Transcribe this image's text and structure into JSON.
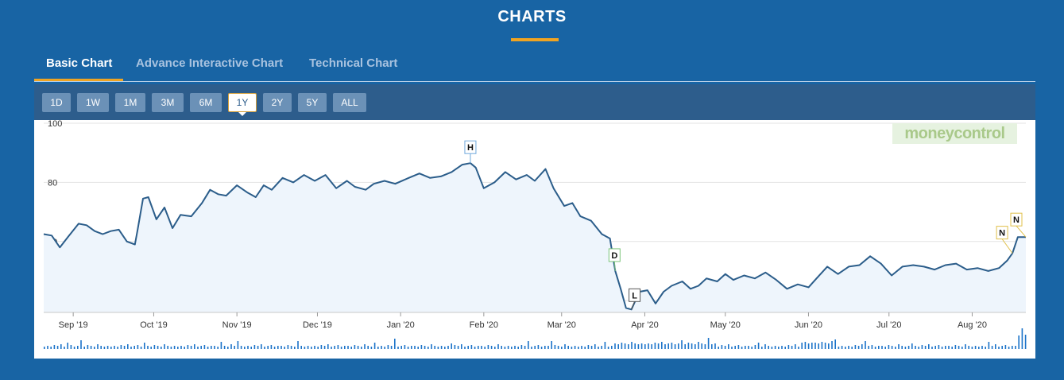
{
  "header": {
    "title": "CHARTS"
  },
  "tabs": [
    {
      "label": "Basic Chart",
      "active": true
    },
    {
      "label": "Advance Interactive Chart",
      "active": false
    },
    {
      "label": "Technical Chart",
      "active": false
    }
  ],
  "ranges": [
    {
      "label": "1D"
    },
    {
      "label": "1W"
    },
    {
      "label": "1M"
    },
    {
      "label": "3M"
    },
    {
      "label": "6M"
    },
    {
      "label": "1Y",
      "active": true
    },
    {
      "label": "2Y"
    },
    {
      "label": "5Y"
    },
    {
      "label": "ALL"
    }
  ],
  "logo": {
    "part1": "money",
    "part2": "control"
  },
  "colors": {
    "background": "#1864a4",
    "accent": "#f0a422",
    "line": "#2b5d8a",
    "fill": "#eef5fc",
    "volume": "#1b73c9"
  },
  "chart_data": {
    "type": "line",
    "ylim": [
      36,
      100
    ],
    "yticks": [
      40,
      60,
      80,
      100
    ],
    "x_start": "2019-08-21",
    "x_end": "2020-08-21",
    "xticks": [
      {
        "label": "Sep '19",
        "date": "2019-09-01"
      },
      {
        "label": "Oct '19",
        "date": "2019-10-01"
      },
      {
        "label": "Nov '19",
        "date": "2019-11-01"
      },
      {
        "label": "Dec '19",
        "date": "2019-12-01"
      },
      {
        "label": "Jan '20",
        "date": "2020-01-01"
      },
      {
        "label": "Feb '20",
        "date": "2020-02-01"
      },
      {
        "label": "Mar '20",
        "date": "2020-03-01"
      },
      {
        "label": "Apr '20",
        "date": "2020-04-01"
      },
      {
        "label": "May '20",
        "date": "2020-05-01"
      },
      {
        "label": "Jun '20",
        "date": "2020-06-01"
      },
      {
        "label": "Jul '20",
        "date": "2020-07-01"
      },
      {
        "label": "Aug '20",
        "date": "2020-08-01"
      }
    ],
    "series": [
      {
        "points": [
          [
            "2019-08-21",
            62.5
          ],
          [
            "2019-08-24",
            62.0
          ],
          [
            "2019-08-27",
            58.0
          ],
          [
            "2019-08-30",
            61.5
          ],
          [
            "2019-09-03",
            66.0
          ],
          [
            "2019-09-06",
            65.5
          ],
          [
            "2019-09-09",
            63.5
          ],
          [
            "2019-09-12",
            62.5
          ],
          [
            "2019-09-15",
            63.5
          ],
          [
            "2019-09-18",
            64.0
          ],
          [
            "2019-09-21",
            60.0
          ],
          [
            "2019-09-24",
            59.0
          ],
          [
            "2019-09-25",
            64.0
          ],
          [
            "2019-09-27",
            74.5
          ],
          [
            "2019-09-29",
            75.0
          ],
          [
            "2019-10-02",
            67.5
          ],
          [
            "2019-10-05",
            71.5
          ],
          [
            "2019-10-08",
            64.5
          ],
          [
            "2019-10-11",
            69.0
          ],
          [
            "2019-10-15",
            68.5
          ],
          [
            "2019-10-19",
            73.0
          ],
          [
            "2019-10-22",
            77.5
          ],
          [
            "2019-10-25",
            76.0
          ],
          [
            "2019-10-28",
            75.5
          ],
          [
            "2019-11-01",
            79.0
          ],
          [
            "2019-11-05",
            76.5
          ],
          [
            "2019-11-08",
            75.0
          ],
          [
            "2019-11-11",
            79.0
          ],
          [
            "2019-11-14",
            77.5
          ],
          [
            "2019-11-18",
            81.5
          ],
          [
            "2019-11-22",
            80.0
          ],
          [
            "2019-11-26",
            82.5
          ],
          [
            "2019-11-30",
            80.5
          ],
          [
            "2019-12-04",
            82.5
          ],
          [
            "2019-12-08",
            78.0
          ],
          [
            "2019-12-12",
            80.5
          ],
          [
            "2019-12-15",
            78.5
          ],
          [
            "2019-12-19",
            77.5
          ],
          [
            "2019-12-22",
            79.5
          ],
          [
            "2019-12-26",
            80.5
          ],
          [
            "2019-12-30",
            79.5
          ],
          [
            "2020-01-04",
            81.5
          ],
          [
            "2020-01-08",
            83.0
          ],
          [
            "2020-01-12",
            81.5
          ],
          [
            "2020-01-16",
            82.0
          ],
          [
            "2020-01-20",
            83.5
          ],
          [
            "2020-01-24",
            86.0
          ],
          [
            "2020-01-27",
            86.5
          ],
          [
            "2020-01-29",
            85.0
          ],
          [
            "2020-02-01",
            78.0
          ],
          [
            "2020-02-05",
            80.0
          ],
          [
            "2020-02-09",
            83.5
          ],
          [
            "2020-02-13",
            81.0
          ],
          [
            "2020-02-17",
            82.5
          ],
          [
            "2020-02-20",
            80.5
          ],
          [
            "2020-02-24",
            84.5
          ],
          [
            "2020-02-27",
            78.0
          ],
          [
            "2020-03-02",
            72.0
          ],
          [
            "2020-03-05",
            73.0
          ],
          [
            "2020-03-08",
            68.5
          ],
          [
            "2020-03-12",
            67.0
          ],
          [
            "2020-03-16",
            62.5
          ],
          [
            "2020-03-19",
            61.0
          ],
          [
            "2020-03-21",
            50.0
          ],
          [
            "2020-03-23",
            44.0
          ],
          [
            "2020-03-25",
            37.5
          ],
          [
            "2020-03-27",
            37.0
          ],
          [
            "2020-03-30",
            43.0
          ],
          [
            "2020-04-02",
            43.5
          ],
          [
            "2020-04-05",
            39.0
          ],
          [
            "2020-04-08",
            43.0
          ],
          [
            "2020-04-11",
            45.0
          ],
          [
            "2020-04-15",
            46.5
          ],
          [
            "2020-04-18",
            44.0
          ],
          [
            "2020-04-21",
            45.0
          ],
          [
            "2020-04-24",
            47.5
          ],
          [
            "2020-04-28",
            46.5
          ],
          [
            "2020-05-01",
            49.0
          ],
          [
            "2020-05-04",
            47.0
          ],
          [
            "2020-05-08",
            48.5
          ],
          [
            "2020-05-12",
            47.5
          ],
          [
            "2020-05-16",
            49.5
          ],
          [
            "2020-05-20",
            47.0
          ],
          [
            "2020-05-24",
            44.0
          ],
          [
            "2020-05-28",
            45.5
          ],
          [
            "2020-06-01",
            44.5
          ],
          [
            "2020-06-04",
            47.5
          ],
          [
            "2020-06-08",
            51.5
          ],
          [
            "2020-06-12",
            49.0
          ],
          [
            "2020-06-16",
            51.5
          ],
          [
            "2020-06-20",
            52.0
          ],
          [
            "2020-06-24",
            55.0
          ],
          [
            "2020-06-28",
            52.5
          ],
          [
            "2020-07-02",
            48.5
          ],
          [
            "2020-07-06",
            51.5
          ],
          [
            "2020-07-10",
            52.0
          ],
          [
            "2020-07-14",
            51.5
          ],
          [
            "2020-07-18",
            50.5
          ],
          [
            "2020-07-22",
            52.0
          ],
          [
            "2020-07-26",
            52.5
          ],
          [
            "2020-07-30",
            50.5
          ],
          [
            "2020-08-03",
            51.0
          ],
          [
            "2020-08-07",
            50.0
          ],
          [
            "2020-08-11",
            51.0
          ],
          [
            "2020-08-14",
            53.5
          ],
          [
            "2020-08-16",
            56.0
          ],
          [
            "2020-08-18",
            61.5
          ],
          [
            "2020-08-21",
            61.5
          ]
        ]
      }
    ],
    "annotations": [
      {
        "label": "H",
        "date": "2020-01-27",
        "value": 86.5,
        "color": "#6fa8dc"
      },
      {
        "label": "D",
        "date": "2020-03-21",
        "value": 50.0,
        "color": "#7cc47a"
      },
      {
        "label": "L",
        "date": "2020-03-27",
        "value": 37.0,
        "color": "#555555"
      },
      {
        "label": "N",
        "date": "2020-08-16",
        "value": 56.0,
        "color": "#e0c04a"
      },
      {
        "label": "N",
        "date": "2020-08-21",
        "value": 61.5,
        "color": "#e0c04a"
      }
    ]
  }
}
